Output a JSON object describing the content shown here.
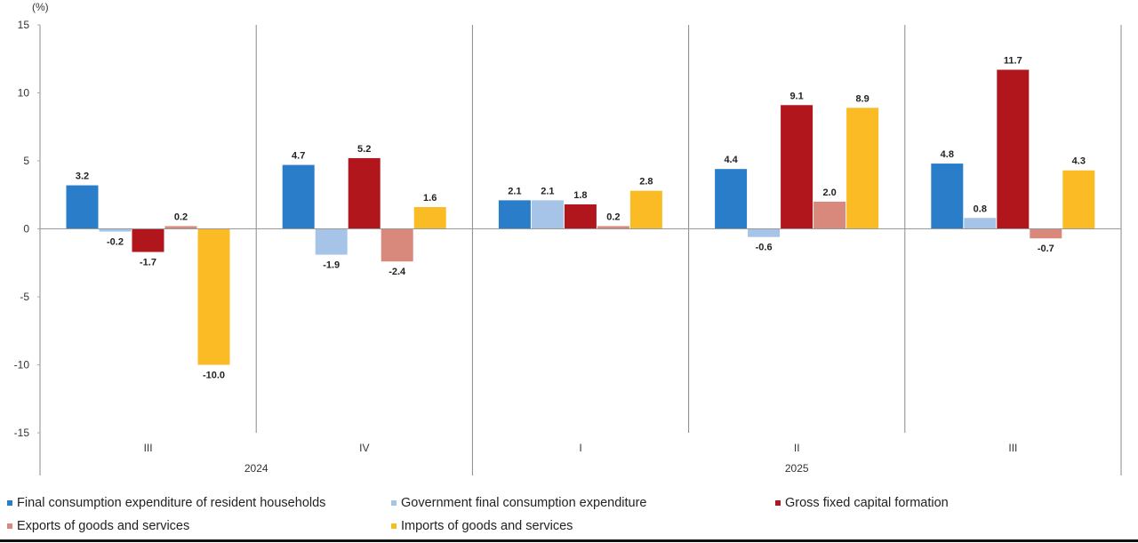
{
  "chart_data": {
    "type": "bar",
    "ylabel": "(%)",
    "ylim": [
      -15,
      15
    ],
    "yticks": [
      15,
      10,
      5,
      0,
      -5,
      -10,
      -15
    ],
    "grid": false,
    "legend_position": "bottom",
    "categories": [
      "III",
      "IV",
      "I",
      "II",
      "III"
    ],
    "years": [
      {
        "label": "2024",
        "span": [
          0,
          1
        ]
      },
      {
        "label": "2025",
        "span": [
          2,
          4
        ]
      }
    ],
    "series": [
      {
        "name": "Final consumption expenditure of resident households",
        "color": "#2a7dc8",
        "values": [
          3.2,
          4.7,
          2.1,
          4.4,
          4.8
        ]
      },
      {
        "name": "Government final consumption expenditure",
        "color": "#a6c3e8",
        "values": [
          -0.2,
          -1.9,
          2.1,
          -0.6,
          0.8
        ]
      },
      {
        "name": "Gross fixed capital formation",
        "color": "#b0161c",
        "values": [
          -1.7,
          5.2,
          1.8,
          9.1,
          11.7
        ]
      },
      {
        "name": "Exports of goods and services",
        "color": "#d8897b",
        "values": [
          0.2,
          -2.4,
          0.2,
          2.0,
          -0.7
        ]
      },
      {
        "name": "Imports of goods and services",
        "color": "#fbbb25",
        "values": [
          -10.0,
          1.6,
          2.8,
          8.9,
          4.3
        ]
      }
    ]
  }
}
